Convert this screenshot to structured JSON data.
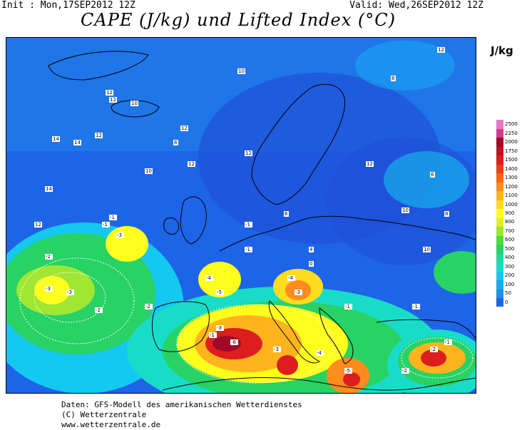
{
  "header": {
    "init": "Init : Mon,17SEP2012  12Z",
    "valid": "Valid: Wed,26SEP2012  12Z",
    "title": "CAPE (J/kg) und Lifted Index (°C)",
    "unit": "J/kg"
  },
  "legend": {
    "levels": [
      "0",
      "50",
      "100",
      "200",
      "300",
      "400",
      "500",
      "600",
      "700",
      "800",
      "900",
      "1000",
      "1100",
      "1200",
      "1300",
      "1400",
      "1500",
      "1750",
      "2000",
      "2250",
      "2500"
    ],
    "colors": [
      "#1e64e6",
      "#1e8ceb",
      "#19aaf5",
      "#14c8f0",
      "#19dcc8",
      "#1edca0",
      "#28d264",
      "#50dc3c",
      "#a0e632",
      "#dcf028",
      "#ffff1e",
      "#ffdc1e",
      "#ffb41e",
      "#ff8c1e",
      "#ff6414",
      "#f03c14",
      "#dc1e1e",
      "#be141e",
      "#a00a28",
      "#d23c8c",
      "#e678c8"
    ]
  },
  "map": {
    "palette": {
      "sea": "#1e50d8",
      "deep": "#1e64e6",
      "light_blue": "#1e8ceb",
      "cyan": "#14c8f0",
      "green": "#28d264",
      "yellow": "#ffff1e",
      "orange": "#ffb41e",
      "red": "#dc1e1e",
      "darkred": "#a00a28",
      "coast": "#000000",
      "contour": "#9a9ad6"
    },
    "lifted_index_labels": [
      "12",
      "12",
      "10",
      "14",
      "14",
      "12",
      "12",
      "8",
      "10",
      "14",
      "12",
      "12",
      "10",
      "8",
      "12",
      "12",
      "10",
      "12",
      "6",
      "8",
      "10",
      "4",
      "6",
      "-1",
      "-1",
      "-1",
      "-3",
      "-2",
      "-3",
      "-3",
      "-4",
      "-5",
      "-3",
      "-6",
      "-2",
      "-4",
      "-3",
      "-2",
      "-4",
      "-5",
      "-1",
      "-1",
      "0",
      "-1",
      "-1",
      "-3",
      "-1",
      "-2",
      "-2"
    ]
  },
  "footer": {
    "line1": "Daten: GFS-Modell des amerikanischen Wetterdienstes",
    "line2": "(C) Wetterzentrale",
    "line3": "www.wetterzentrale.de"
  }
}
